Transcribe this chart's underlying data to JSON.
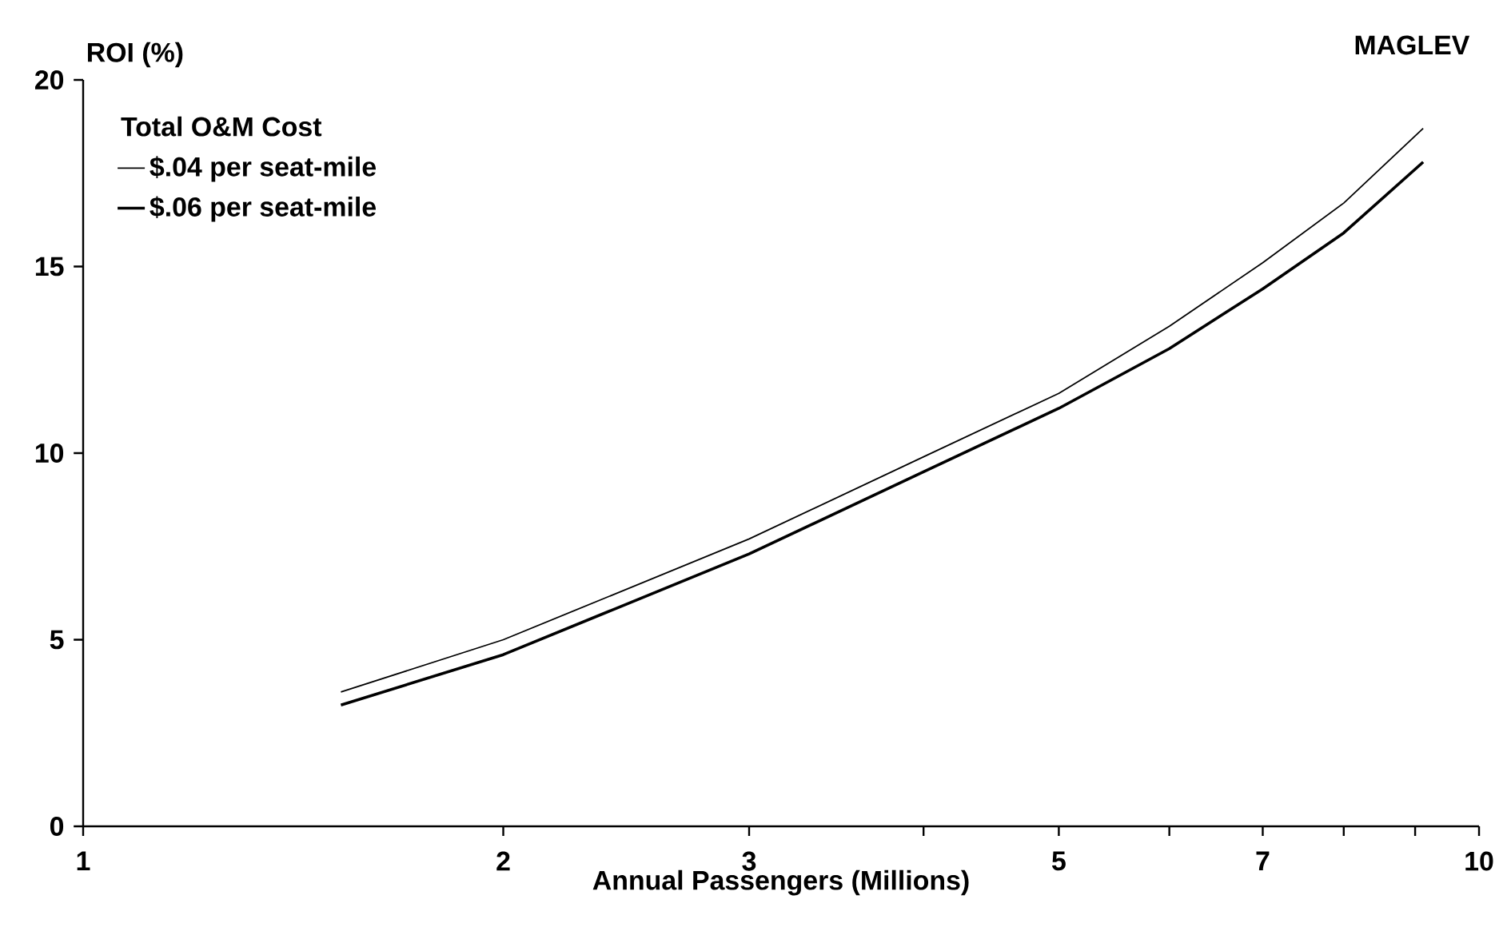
{
  "chart_data": {
    "type": "line",
    "title": "MAGLEV",
    "ylabel": "ROI (%)",
    "xlabel": "Annual Passengers (Millions)",
    "legend_title": "Total O&M Cost",
    "legend": "top left",
    "log": "x",
    "xlim": [
      1,
      10
    ],
    "xticks": [
      1,
      2,
      3,
      {
        "value": 4,
        "label": null
      },
      5,
      {
        "value": 6,
        "label": null
      },
      7,
      {
        "value": 8,
        "label": null
      },
      {
        "value": 9,
        "label": null
      },
      10
    ],
    "ylim": [
      0,
      20
    ],
    "yticks": [
      0,
      5,
      10,
      15,
      20
    ],
    "series": [
      {
        "name": "$.04 per seat-mile",
        "color": "#000000",
        "x": [
          1.53,
          2,
          3,
          4,
          5,
          6,
          7,
          8,
          9.12
        ],
        "values": [
          3.6,
          5.0,
          7.7,
          9.9,
          11.6,
          13.4,
          15.1,
          16.7,
          18.7
        ]
      },
      {
        "name": "$.06 per seat-mile",
        "color": "#000000",
        "x": [
          1.53,
          2,
          3,
          4,
          5,
          6,
          7,
          8,
          9.12
        ],
        "values": [
          3.25,
          4.6,
          7.3,
          9.5,
          11.2,
          12.8,
          14.4,
          15.9,
          17.8
        ]
      }
    ]
  }
}
